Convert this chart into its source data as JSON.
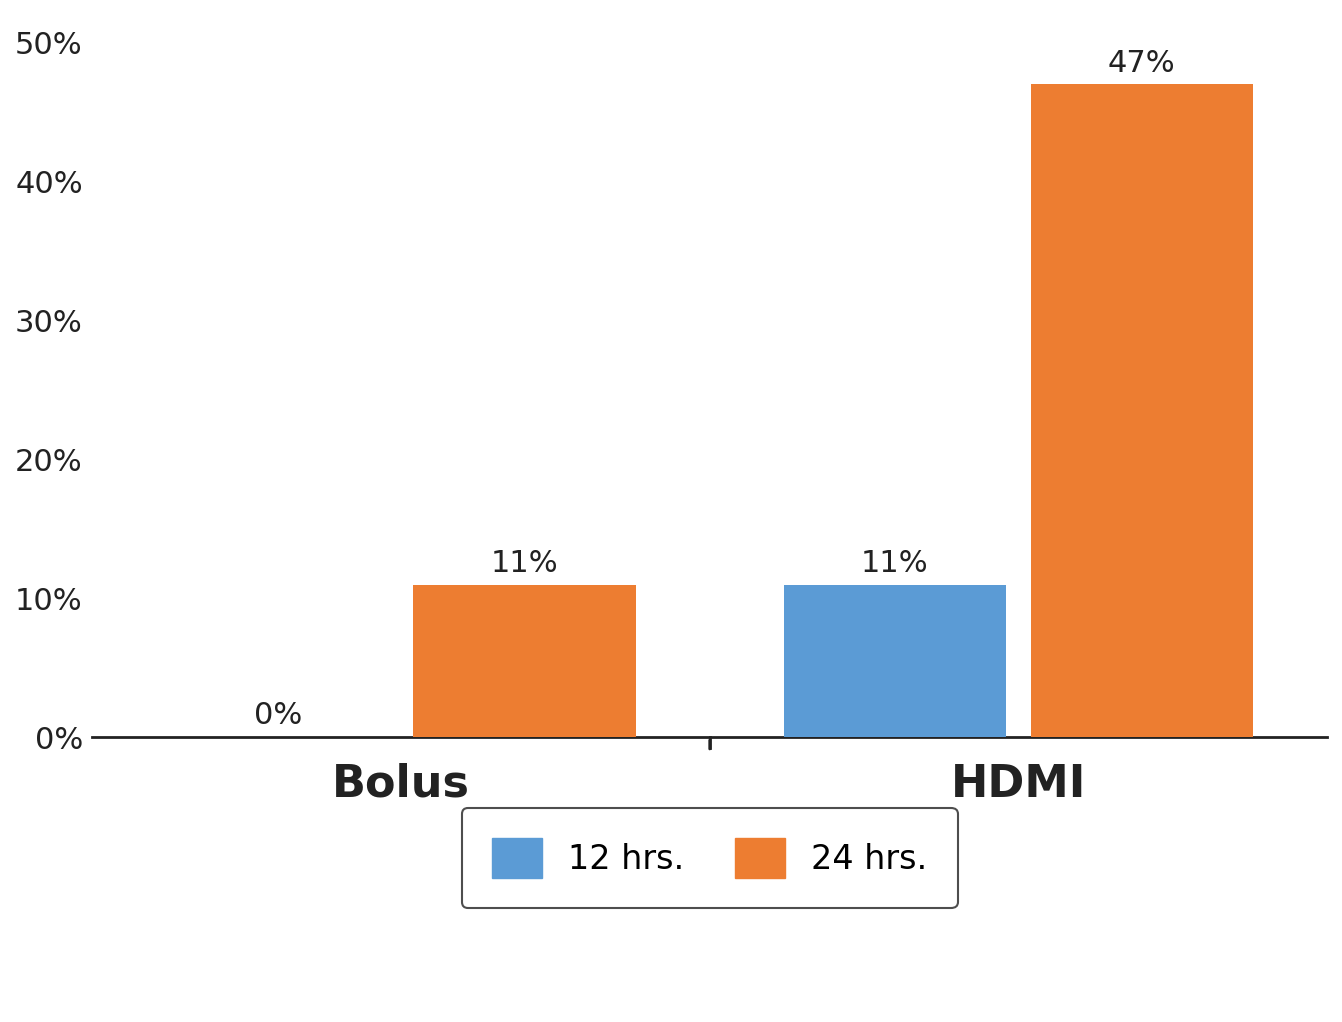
{
  "groups": [
    "Bolus",
    "HDMI"
  ],
  "series": [
    "12 hrs.",
    "24 hrs."
  ],
  "values": {
    "Bolus": [
      0,
      11
    ],
    "HDMI": [
      11,
      47
    ]
  },
  "bar_colors": [
    "#5B9BD5",
    "#ED7D31"
  ],
  "ylim": [
    0,
    52
  ],
  "yticks": [
    0,
    10,
    20,
    30,
    40,
    50
  ],
  "ytick_labels": [
    "0%",
    "10%",
    "20%",
    "30%",
    "40%",
    "50%"
  ],
  "bar_annotations": {
    "Bolus": [
      "0%",
      "11%"
    ],
    "HDMI": [
      "11%",
      "47%"
    ]
  },
  "background_color": "#FFFFFF",
  "bar_width": 0.18,
  "annotation_fontsize": 22,
  "tick_fontsize": 22,
  "xlabel_fontsize": 32,
  "legend_fontsize": 24,
  "group_centers": [
    0.25,
    0.75
  ],
  "xlim": [
    0.0,
    1.0
  ]
}
